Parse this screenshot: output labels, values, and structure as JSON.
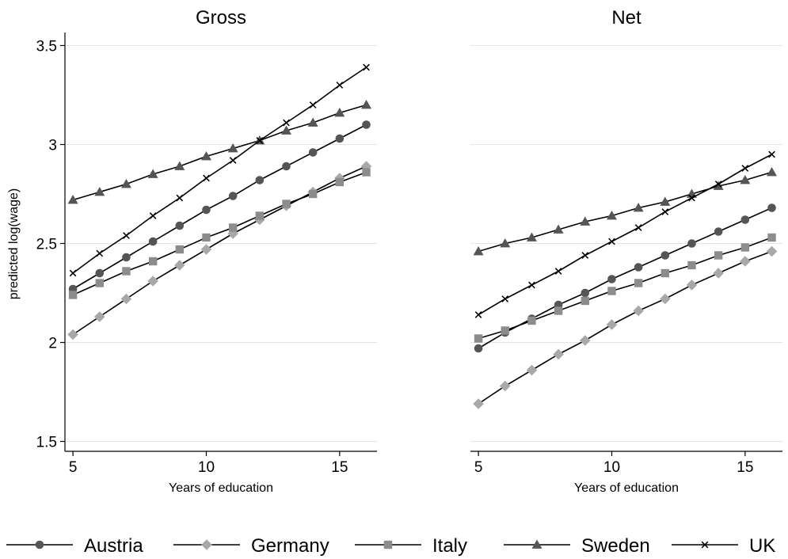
{
  "chart_data": {
    "type": "line",
    "ylabel": "predicted log(wage)",
    "xlabel": "Years of education",
    "x": [
      5,
      6,
      7,
      8,
      9,
      10,
      11,
      12,
      13,
      14,
      15,
      16
    ],
    "xticks": [
      5,
      10,
      15
    ],
    "yticks": [
      1.5,
      2,
      2.5,
      3,
      3.5
    ],
    "ylim": [
      1.45,
      3.55
    ],
    "xlim": [
      4.7,
      16.4
    ],
    "grid": true,
    "legend_position": "bottom",
    "panels": [
      {
        "title": "Gross",
        "series": [
          {
            "name": "Austria",
            "marker": "circle",
            "color": "#555555",
            "values": [
              2.27,
              2.35,
              2.43,
              2.51,
              2.59,
              2.67,
              2.74,
              2.82,
              2.89,
              2.96,
              3.03,
              3.1
            ]
          },
          {
            "name": "Germany",
            "marker": "diamond",
            "color": "#a8a8a8",
            "values": [
              2.04,
              2.13,
              2.22,
              2.31,
              2.39,
              2.47,
              2.55,
              2.62,
              2.69,
              2.76,
              2.83,
              2.89
            ]
          },
          {
            "name": "Italy",
            "marker": "square",
            "color": "#8c8c8c",
            "values": [
              2.24,
              2.3,
              2.36,
              2.41,
              2.47,
              2.53,
              2.58,
              2.64,
              2.7,
              2.75,
              2.81,
              2.86
            ]
          },
          {
            "name": "Sweden",
            "marker": "triangle",
            "color": "#555555",
            "values": [
              2.72,
              2.76,
              2.8,
              2.85,
              2.89,
              2.94,
              2.98,
              3.02,
              3.07,
              3.11,
              3.16,
              3.2
            ]
          },
          {
            "name": "UK",
            "marker": "x",
            "color": "#000000",
            "values": [
              2.35,
              2.45,
              2.54,
              2.64,
              2.73,
              2.83,
              2.92,
              3.02,
              3.11,
              3.2,
              3.3,
              3.39
            ]
          }
        ]
      },
      {
        "title": "Net",
        "series": [
          {
            "name": "Austria",
            "marker": "circle",
            "color": "#555555",
            "values": [
              1.97,
              2.05,
              2.12,
              2.19,
              2.25,
              2.32,
              2.38,
              2.44,
              2.5,
              2.56,
              2.62,
              2.68
            ]
          },
          {
            "name": "Germany",
            "marker": "diamond",
            "color": "#a8a8a8",
            "values": [
              1.69,
              1.78,
              1.86,
              1.94,
              2.01,
              2.09,
              2.16,
              2.22,
              2.29,
              2.35,
              2.41,
              2.46
            ]
          },
          {
            "name": "Italy",
            "marker": "square",
            "color": "#8c8c8c",
            "values": [
              2.02,
              2.06,
              2.11,
              2.16,
              2.21,
              2.26,
              2.3,
              2.35,
              2.39,
              2.44,
              2.48,
              2.53
            ]
          },
          {
            "name": "Sweden",
            "marker": "triangle",
            "color": "#555555",
            "values": [
              2.46,
              2.5,
              2.53,
              2.57,
              2.61,
              2.64,
              2.68,
              2.71,
              2.75,
              2.79,
              2.82,
              2.86
            ]
          },
          {
            "name": "UK",
            "marker": "x",
            "color": "#000000",
            "values": [
              2.14,
              2.22,
              2.29,
              2.36,
              2.44,
              2.51,
              2.58,
              2.66,
              2.73,
              2.8,
              2.88,
              2.95
            ]
          }
        ]
      }
    ],
    "legend": [
      {
        "name": "Austria",
        "marker": "circle",
        "color": "#555555"
      },
      {
        "name": "Germany",
        "marker": "diamond",
        "color": "#a8a8a8"
      },
      {
        "name": "Italy",
        "marker": "square",
        "color": "#8c8c8c"
      },
      {
        "name": "Sweden",
        "marker": "triangle",
        "color": "#555555"
      },
      {
        "name": "UK",
        "marker": "x",
        "color": "#000000"
      }
    ]
  }
}
